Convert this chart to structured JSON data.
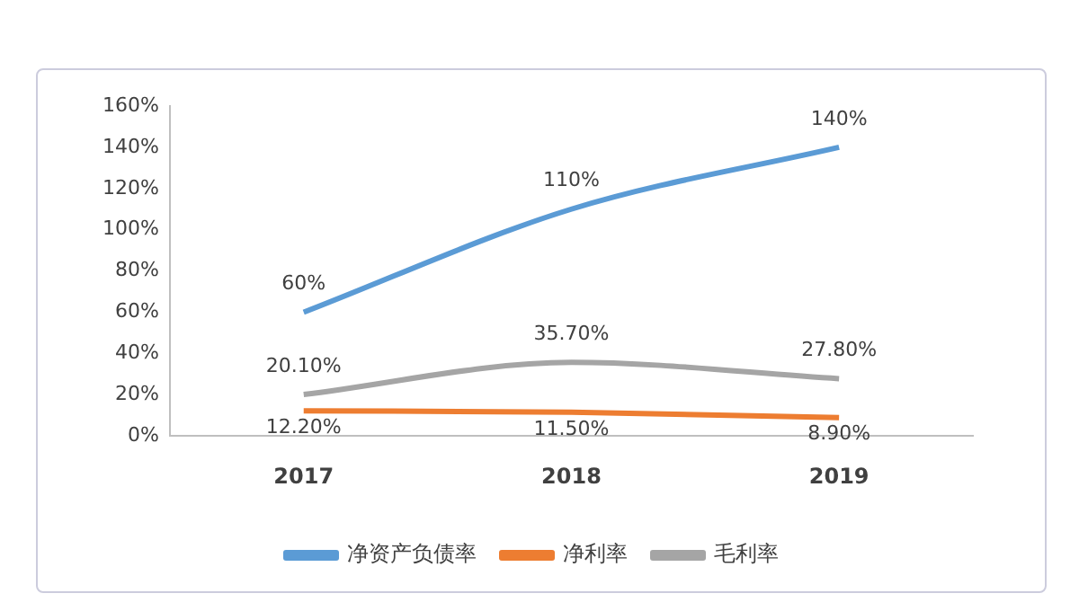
{
  "chart_data": {
    "type": "line",
    "categories": [
      "2017",
      "2018",
      "2019"
    ],
    "series": [
      {
        "name": "净资产负债率",
        "color": "#5b9bd5",
        "values": [
          60,
          110,
          140
        ],
        "value_labels": [
          "60%",
          "110%",
          "140%"
        ]
      },
      {
        "name": "净利率",
        "color": "#ed7d31",
        "values": [
          12.2,
          11.5,
          8.9
        ],
        "value_labels": [
          "12.20%",
          "11.50%",
          "8.90%"
        ]
      },
      {
        "name": "毛利率",
        "color": "#a5a5a5",
        "values": [
          20.1,
          35.7,
          27.8
        ],
        "value_labels": [
          "20.10%",
          "35.70%",
          "27.80%"
        ]
      }
    ],
    "ylim": [
      0,
      160
    ],
    "yticks": [
      {
        "value": 0,
        "label": "0%"
      },
      {
        "value": 20,
        "label": "20%"
      },
      {
        "value": 40,
        "label": "40%"
      },
      {
        "value": 60,
        "label": "60%"
      },
      {
        "value": 80,
        "label": "80%"
      },
      {
        "value": 100,
        "label": "100%"
      },
      {
        "value": 120,
        "label": "120%"
      },
      {
        "value": 140,
        "label": "140%"
      },
      {
        "value": 160,
        "label": "160%"
      }
    ],
    "grid": false,
    "legend": "bottom",
    "marker": "none",
    "line_style": "solid"
  }
}
